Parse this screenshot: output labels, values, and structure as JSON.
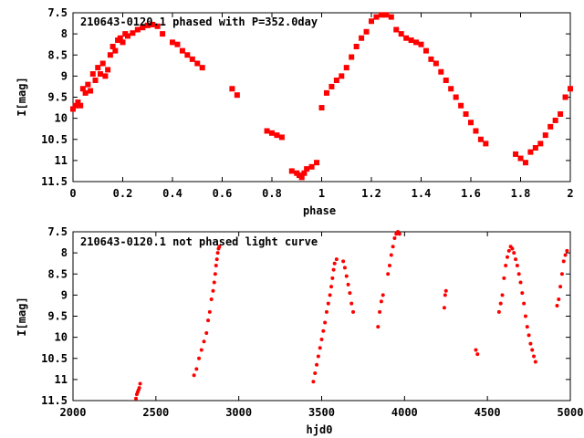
{
  "chart_data": [
    {
      "type": "scatter",
      "title": "210643-0120.1 phased with P=352.0day",
      "xlabel": "phase",
      "ylabel": "I[mag]",
      "xlim": [
        0,
        2
      ],
      "ylim": [
        11.5,
        7.5
      ],
      "y_inverted": true,
      "xticks": [
        "0",
        "0.2",
        "0.4",
        "0.6",
        "0.8",
        "1",
        "1.2",
        "1.4",
        "1.6",
        "1.8",
        "2"
      ],
      "yticks": [
        "7.5",
        "8",
        "8.5",
        "9",
        "9.5",
        "10",
        "10.5",
        "11",
        "11.5"
      ],
      "grid": false,
      "marker_color": "#ff0000",
      "points": [
        [
          0.0,
          9.78
        ],
        [
          0.01,
          9.7
        ],
        [
          0.02,
          9.62
        ],
        [
          0.03,
          9.7
        ],
        [
          0.04,
          9.3
        ],
        [
          0.05,
          9.4
        ],
        [
          0.06,
          9.2
        ],
        [
          0.07,
          9.35
        ],
        [
          0.08,
          8.95
        ],
        [
          0.09,
          9.1
        ],
        [
          0.1,
          8.8
        ],
        [
          0.11,
          8.95
        ],
        [
          0.12,
          8.7
        ],
        [
          0.13,
          9.0
        ],
        [
          0.14,
          8.85
        ],
        [
          0.15,
          8.5
        ],
        [
          0.16,
          8.3
        ],
        [
          0.17,
          8.4
        ],
        [
          0.18,
          8.15
        ],
        [
          0.19,
          8.1
        ],
        [
          0.2,
          8.2
        ],
        [
          0.21,
          8.0
        ],
        [
          0.22,
          8.05
        ],
        [
          0.24,
          7.98
        ],
        [
          0.26,
          7.9
        ],
        [
          0.28,
          7.85
        ],
        [
          0.3,
          7.8
        ],
        [
          0.32,
          7.78
        ],
        [
          0.34,
          7.82
        ],
        [
          0.36,
          8.0
        ],
        [
          0.4,
          8.2
        ],
        [
          0.42,
          8.25
        ],
        [
          0.44,
          8.4
        ],
        [
          0.46,
          8.5
        ],
        [
          0.48,
          8.6
        ],
        [
          0.5,
          8.7
        ],
        [
          0.52,
          8.8
        ],
        [
          0.64,
          9.3
        ],
        [
          0.66,
          9.45
        ],
        [
          0.78,
          10.3
        ],
        [
          0.8,
          10.35
        ],
        [
          0.82,
          10.4
        ],
        [
          0.84,
          10.45
        ],
        [
          0.88,
          11.25
        ],
        [
          0.9,
          11.3
        ],
        [
          0.91,
          11.35
        ],
        [
          0.92,
          11.4
        ],
        [
          0.93,
          11.3
        ],
        [
          0.94,
          11.2
        ],
        [
          0.96,
          11.15
        ],
        [
          0.98,
          11.05
        ],
        [
          1.0,
          9.75
        ],
        [
          1.02,
          9.4
        ],
        [
          1.04,
          9.25
        ],
        [
          1.06,
          9.1
        ],
        [
          1.08,
          9.0
        ],
        [
          1.1,
          8.8
        ],
        [
          1.12,
          8.55
        ],
        [
          1.14,
          8.3
        ],
        [
          1.16,
          8.1
        ],
        [
          1.18,
          7.95
        ],
        [
          1.2,
          7.7
        ],
        [
          1.22,
          7.6
        ],
        [
          1.24,
          7.55
        ],
        [
          1.26,
          7.55
        ],
        [
          1.28,
          7.6
        ],
        [
          1.3,
          7.9
        ],
        [
          1.32,
          8.0
        ],
        [
          1.34,
          8.1
        ],
        [
          1.36,
          8.15
        ],
        [
          1.38,
          8.2
        ],
        [
          1.4,
          8.25
        ],
        [
          1.42,
          8.4
        ],
        [
          1.44,
          8.6
        ],
        [
          1.46,
          8.7
        ],
        [
          1.48,
          8.9
        ],
        [
          1.5,
          9.1
        ],
        [
          1.52,
          9.3
        ],
        [
          1.54,
          9.5
        ],
        [
          1.56,
          9.7
        ],
        [
          1.58,
          9.9
        ],
        [
          1.6,
          10.1
        ],
        [
          1.62,
          10.3
        ],
        [
          1.64,
          10.5
        ],
        [
          1.66,
          10.6
        ],
        [
          1.78,
          10.85
        ],
        [
          1.8,
          10.95
        ],
        [
          1.82,
          11.05
        ],
        [
          1.84,
          10.8
        ],
        [
          1.86,
          10.7
        ],
        [
          1.88,
          10.6
        ],
        [
          1.9,
          10.4
        ],
        [
          1.92,
          10.2
        ],
        [
          1.94,
          10.05
        ],
        [
          1.96,
          9.9
        ],
        [
          1.98,
          9.5
        ],
        [
          2.0,
          9.3
        ]
      ]
    },
    {
      "type": "scatter",
      "title": "210643-0120.1 not phased light curve",
      "xlabel": "hjd0",
      "ylabel": "I[mag]",
      "xlim": [
        2000,
        5000
      ],
      "ylim": [
        11.5,
        7.5
      ],
      "y_inverted": true,
      "xticks": [
        "2000",
        "2500",
        "3000",
        "3500",
        "4000",
        "4500",
        "5000"
      ],
      "yticks": [
        "7.5",
        "8",
        "8.5",
        "9",
        "9.5",
        "10",
        "10.5",
        "11",
        "11.5"
      ],
      "grid": false,
      "marker_color": "#ff0000",
      "points": [
        [
          2380,
          11.45
        ],
        [
          2385,
          11.35
        ],
        [
          2390,
          11.3
        ],
        [
          2395,
          11.25
        ],
        [
          2400,
          11.2
        ],
        [
          2405,
          11.1
        ],
        [
          2730,
          10.9
        ],
        [
          2745,
          10.75
        ],
        [
          2760,
          10.5
        ],
        [
          2775,
          10.3
        ],
        [
          2790,
          10.1
        ],
        [
          2805,
          9.9
        ],
        [
          2815,
          9.6
        ],
        [
          2825,
          9.4
        ],
        [
          2835,
          9.1
        ],
        [
          2845,
          8.9
        ],
        [
          2852,
          8.7
        ],
        [
          2858,
          8.5
        ],
        [
          2863,
          8.3
        ],
        [
          2868,
          8.15
        ],
        [
          2873,
          8.0
        ],
        [
          2878,
          7.9
        ],
        [
          2883,
          7.85
        ],
        [
          3450,
          11.05
        ],
        [
          3460,
          10.85
        ],
        [
          3470,
          10.65
        ],
        [
          3480,
          10.45
        ],
        [
          3490,
          10.25
        ],
        [
          3500,
          10.05
        ],
        [
          3510,
          9.85
        ],
        [
          3520,
          9.65
        ],
        [
          3530,
          9.4
        ],
        [
          3540,
          9.2
        ],
        [
          3550,
          9.0
        ],
        [
          3558,
          8.8
        ],
        [
          3565,
          8.6
        ],
        [
          3572,
          8.4
        ],
        [
          3578,
          8.25
        ],
        [
          3590,
          8.15
        ],
        [
          3630,
          8.2
        ],
        [
          3640,
          8.35
        ],
        [
          3650,
          8.55
        ],
        [
          3660,
          8.75
        ],
        [
          3670,
          8.95
        ],
        [
          3680,
          9.2
        ],
        [
          3690,
          9.4
        ],
        [
          3840,
          9.75
        ],
        [
          3850,
          9.4
        ],
        [
          3860,
          9.15
        ],
        [
          3870,
          9.0
        ],
        [
          3900,
          8.5
        ],
        [
          3910,
          8.3
        ],
        [
          3920,
          8.05
        ],
        [
          3930,
          7.85
        ],
        [
          3940,
          7.65
        ],
        [
          3950,
          7.55
        ],
        [
          3960,
          7.5
        ],
        [
          3970,
          7.55
        ],
        [
          4240,
          9.3
        ],
        [
          4245,
          9.0
        ],
        [
          4250,
          8.9
        ],
        [
          4430,
          10.3
        ],
        [
          4440,
          10.4
        ],
        [
          4570,
          9.4
        ],
        [
          4580,
          9.2
        ],
        [
          4590,
          9.0
        ],
        [
          4600,
          8.6
        ],
        [
          4610,
          8.3
        ],
        [
          4620,
          8.1
        ],
        [
          4630,
          7.95
        ],
        [
          4640,
          7.85
        ],
        [
          4650,
          7.9
        ],
        [
          4660,
          8.0
        ],
        [
          4670,
          8.15
        ],
        [
          4680,
          8.3
        ],
        [
          4690,
          8.5
        ],
        [
          4700,
          8.7
        ],
        [
          4710,
          8.95
        ],
        [
          4720,
          9.2
        ],
        [
          4730,
          9.5
        ],
        [
          4740,
          9.75
        ],
        [
          4750,
          9.95
        ],
        [
          4760,
          10.15
        ],
        [
          4770,
          10.3
        ],
        [
          4780,
          10.45
        ],
        [
          4790,
          10.58
        ],
        [
          4920,
          9.25
        ],
        [
          4930,
          9.1
        ],
        [
          4940,
          8.8
        ],
        [
          4950,
          8.5
        ],
        [
          4960,
          8.2
        ],
        [
          4970,
          8.05
        ],
        [
          4980,
          7.95
        ]
      ]
    }
  ]
}
